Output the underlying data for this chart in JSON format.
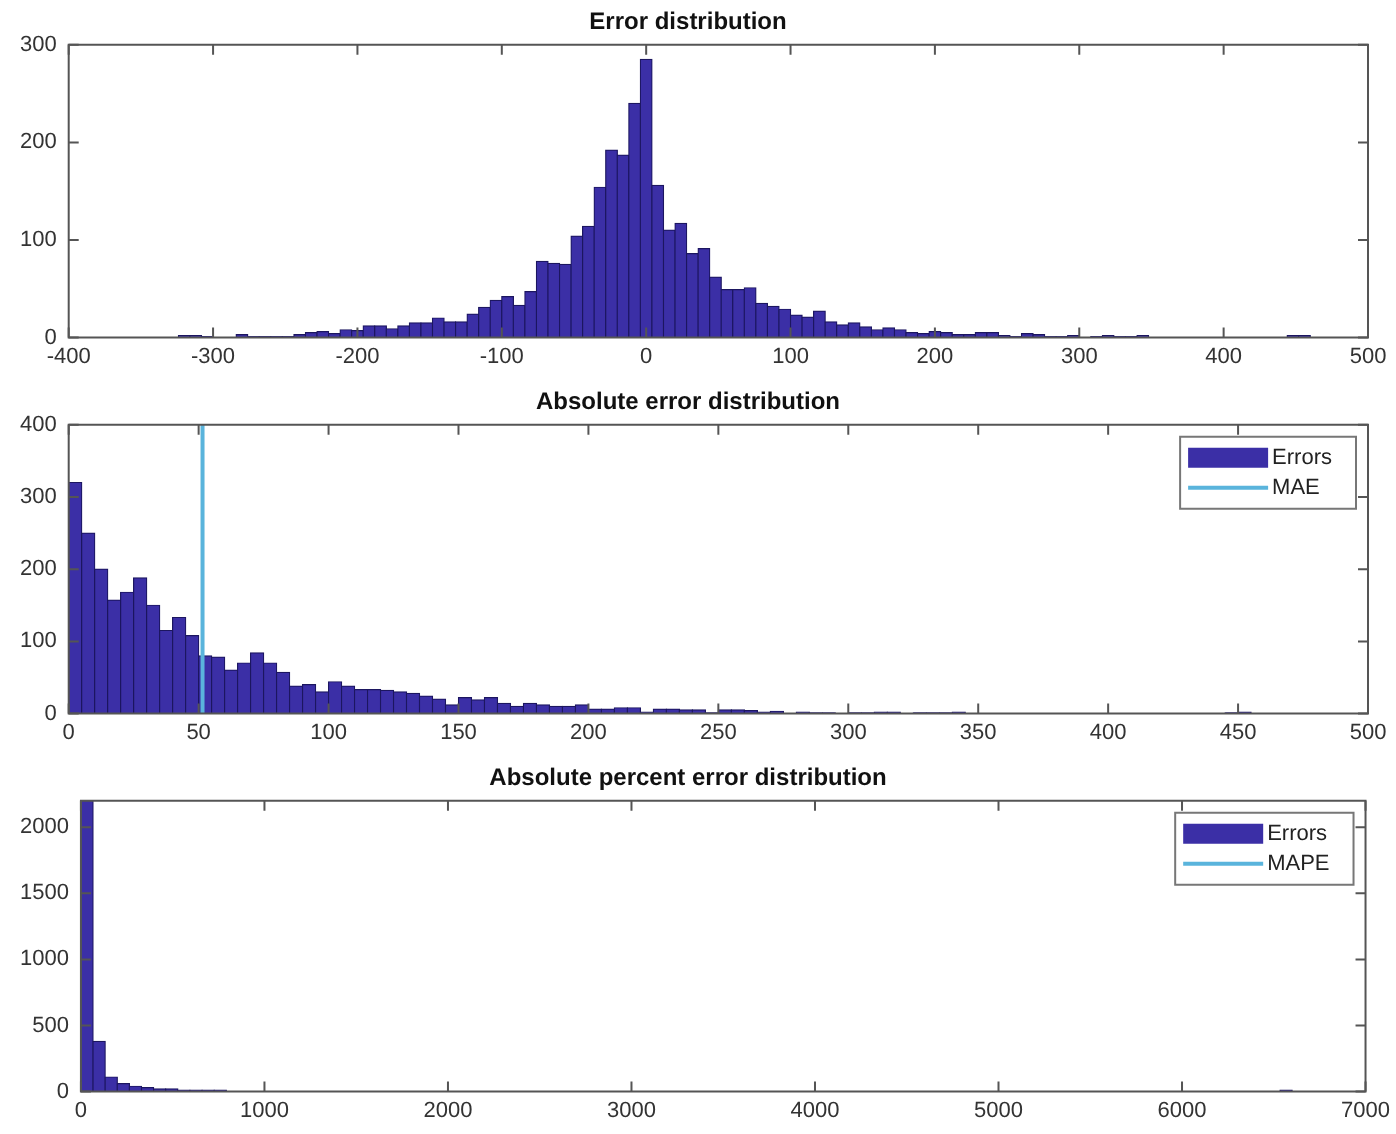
{
  "chart_data": [
    {
      "type": "histogram",
      "title": "Error distribution",
      "bins": [
        -324,
        -316,
        -308,
        -300,
        -292,
        -284,
        -276,
        -268,
        -260,
        -252,
        -244,
        -236,
        -228,
        -220,
        -212,
        -204,
        -196,
        -188,
        -180,
        -172,
        -164,
        -156,
        -148,
        -140,
        -132,
        -124,
        -116,
        -108,
        -100,
        -92,
        -84,
        -76,
        -68,
        -60,
        -52,
        -44,
        -36,
        -28,
        -20,
        -12,
        -4,
        4,
        12,
        20,
        28,
        36,
        44,
        52,
        60,
        68,
        76,
        84,
        92,
        100,
        108,
        116,
        124,
        132,
        140,
        148,
        156,
        164,
        172,
        180,
        188,
        196,
        204,
        212,
        220,
        228,
        236,
        244,
        252,
        260,
        268,
        276,
        284,
        292,
        300,
        308,
        316,
        324,
        332,
        340,
        348,
        356,
        364,
        372,
        380,
        388,
        396,
        404,
        412,
        420,
        428,
        436,
        444,
        452,
        460
      ],
      "series": [
        {
          "color": "#3b2fa6",
          "values": [
            2,
            2,
            1,
            0,
            0,
            3,
            1,
            1,
            1,
            1,
            3,
            5,
            6,
            4,
            8,
            7,
            12,
            12,
            9,
            12,
            15,
            15,
            20,
            16,
            16,
            24,
            31,
            38,
            42,
            33,
            47,
            78,
            76,
            75,
            104,
            114,
            154,
            192,
            187,
            240,
            285,
            156,
            110,
            117,
            86,
            91,
            62,
            49,
            49,
            51,
            35,
            32,
            29,
            23,
            21,
            27,
            16,
            13,
            15,
            11,
            8,
            10,
            8,
            5,
            4,
            6,
            5,
            3,
            3,
            5,
            5,
            2,
            1,
            4,
            3,
            1,
            1,
            2,
            0,
            1,
            2,
            1,
            1,
            2,
            0,
            0,
            0,
            0,
            0,
            0,
            0,
            0,
            0,
            0,
            0,
            0,
            2,
            2
          ]
        }
      ],
      "xlim": [
        -400,
        500
      ],
      "xticks": [
        -400,
        -300,
        -200,
        -100,
        0,
        100,
        200,
        300,
        400,
        500
      ],
      "ylim": [
        0,
        300
      ],
      "yticks": [
        0,
        100,
        200,
        300
      ],
      "grid": false,
      "legend": false
    },
    {
      "type": "histogram",
      "title": "Absolute error distribution",
      "bins": [
        0,
        5,
        10,
        15,
        20,
        25,
        30,
        35,
        40,
        45,
        50,
        55,
        60,
        65,
        70,
        75,
        80,
        85,
        90,
        95,
        100,
        105,
        110,
        115,
        120,
        125,
        130,
        135,
        140,
        145,
        150,
        155,
        160,
        165,
        170,
        175,
        180,
        185,
        190,
        195,
        200,
        205,
        210,
        215,
        220,
        225,
        230,
        235,
        240,
        245,
        250,
        255,
        260,
        265,
        270,
        275,
        280,
        285,
        290,
        295,
        300,
        305,
        310,
        315,
        320,
        325,
        330,
        335,
        340,
        345,
        350,
        355,
        360,
        365,
        370,
        375,
        380,
        385,
        390,
        395,
        400,
        405,
        410,
        415,
        420,
        425,
        430,
        435,
        440,
        445,
        450,
        455
      ],
      "series": [
        {
          "name": "Errors",
          "color": "#3b2fa6",
          "values": [
            320,
            250,
            200,
            157,
            168,
            188,
            150,
            115,
            133,
            108,
            80,
            78,
            60,
            70,
            84,
            70,
            57,
            38,
            40,
            30,
            44,
            38,
            33,
            33,
            32,
            30,
            28,
            24,
            20,
            12,
            22,
            19,
            22,
            14,
            10,
            14,
            12,
            10,
            10,
            12,
            6,
            6,
            8,
            8,
            2,
            6,
            6,
            5,
            5,
            1,
            5,
            5,
            4,
            2,
            3,
            0,
            2,
            1,
            1,
            0,
            1,
            1,
            2,
            2,
            0,
            1,
            1,
            1,
            2,
            0,
            0,
            0,
            0,
            0,
            0,
            0,
            0,
            0,
            0,
            0,
            0,
            0,
            0,
            0,
            0,
            0,
            0,
            0,
            0,
            1,
            2
          ]
        },
        {
          "type": "line",
          "name": "MAE",
          "color": "#5ab4dc",
          "x": [
            51.5,
            51.5
          ],
          "values": [
            0,
            400
          ]
        }
      ],
      "xlim": [
        0,
        500
      ],
      "xticks": [
        0,
        50,
        100,
        150,
        200,
        250,
        300,
        350,
        400,
        450,
        500
      ],
      "ylim": [
        0,
        400
      ],
      "yticks": [
        0,
        100,
        200,
        300,
        400
      ],
      "grid": false,
      "legend": "top right"
    },
    {
      "type": "histogram",
      "title": "Absolute percent error distribution",
      "bins": [
        0,
        66,
        132,
        198,
        264,
        330,
        396,
        462,
        528,
        594,
        660,
        726,
        792,
        858,
        924,
        990,
        1056,
        1122,
        1188,
        1254,
        1320,
        1386,
        1452,
        1518,
        1584,
        1650,
        1716,
        1782,
        1848,
        1914,
        1980,
        2046,
        2112,
        2178,
        2244,
        2310,
        2376,
        2442,
        2508,
        2574,
        2640,
        2706,
        2772,
        2838,
        2904,
        2970,
        3036,
        3102,
        3168,
        3234,
        3300,
        3366,
        3432,
        3498,
        3564,
        3630,
        3696,
        3762,
        3828,
        3894,
        3960,
        4026,
        4092,
        4158,
        4224,
        4290,
        4356,
        4422,
        4488,
        4554,
        4620,
        4686,
        4752,
        4818,
        4884,
        4950,
        5016,
        5082,
        5148,
        5214,
        5280,
        5346,
        5412,
        5478,
        5544,
        5610,
        5676,
        5742,
        5808,
        5874,
        5940,
        6006,
        6072,
        6138,
        6204,
        6270,
        6336,
        6402,
        6468,
        6534,
        6600
      ],
      "series": [
        {
          "name": "Errors",
          "color": "#3b2fa6",
          "values": [
            2200,
            380,
            110,
            60,
            40,
            30,
            20,
            20,
            10,
            10,
            10,
            10,
            0,
            0,
            0,
            0,
            0,
            0,
            0,
            0,
            0,
            0,
            0,
            0,
            0,
            0,
            0,
            0,
            0,
            0,
            0,
            0,
            0,
            0,
            0,
            0,
            0,
            0,
            0,
            0,
            0,
            0,
            0,
            0,
            0,
            0,
            0,
            0,
            0,
            0,
            0,
            0,
            0,
            0,
            0,
            0,
            0,
            0,
            0,
            0,
            0,
            0,
            0,
            0,
            0,
            0,
            0,
            0,
            0,
            0,
            0,
            0,
            0,
            0,
            0,
            0,
            0,
            0,
            0,
            0,
            0,
            0,
            0,
            0,
            0,
            0,
            0,
            0,
            0,
            0,
            0,
            0,
            0,
            0,
            0,
            0,
            0,
            0,
            0,
            10
          ]
        },
        {
          "type": "line",
          "name": "MAPE",
          "color": "#5ab4dc",
          "x": [
            null,
            null
          ],
          "values": [
            null,
            null
          ]
        }
      ],
      "xlim": [
        0,
        7000
      ],
      "xticks": [
        0,
        1000,
        2000,
        3000,
        4000,
        5000,
        6000,
        7000
      ],
      "ylim": [
        0,
        2200
      ],
      "yticks": [
        0,
        500,
        1000,
        1500,
        2000
      ],
      "grid": false,
      "legend": "top right"
    }
  ]
}
